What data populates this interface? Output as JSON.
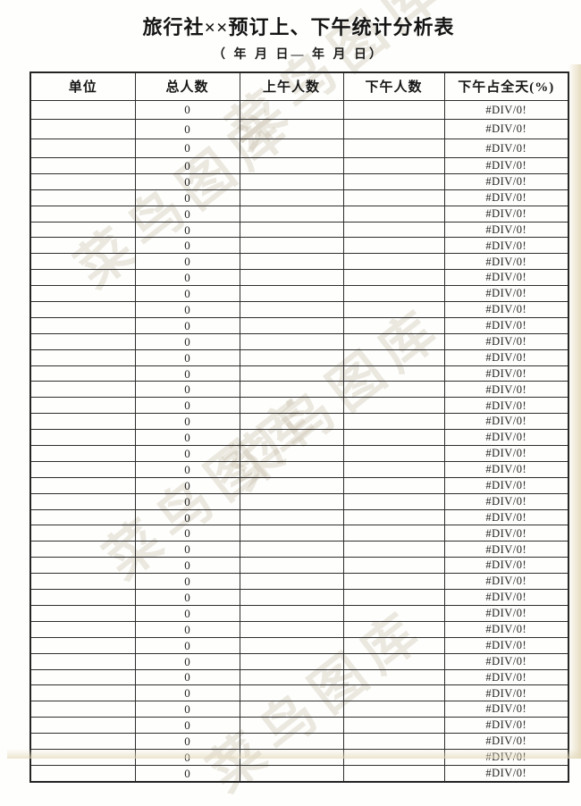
{
  "page": {
    "title": "旅行社××预订上、下午统计分析表",
    "subtitle": "（ 年 月  日— 年  月 日）"
  },
  "watermark": {
    "text": "菜鸟图库"
  },
  "colors": {
    "border": "#2d2d2d",
    "outer_border": "#242424",
    "text": "#1b1b1b",
    "edge_tint": "#e0d4b2",
    "watermark": "#bab096"
  },
  "table": {
    "columns": [
      {
        "key": "unit",
        "label": "单位"
      },
      {
        "key": "total",
        "label": "总人数"
      },
      {
        "key": "morning",
        "label": "上午人数"
      },
      {
        "key": "afternoon",
        "label": "下午人数"
      },
      {
        "key": "pct",
        "label": "下午占全天(%)"
      }
    ],
    "rows": [
      [
        "",
        "0",
        "",
        "",
        "#DIV/0!"
      ],
      [
        "",
        "0",
        "",
        "",
        "#DIV/0!"
      ],
      [
        "",
        "0",
        "",
        "",
        "#DIV/0!"
      ],
      [
        "",
        "0",
        "",
        "",
        "#DIV/0!"
      ],
      [
        "",
        "0",
        "",
        "",
        "#DIV/0!"
      ],
      [
        "",
        "0",
        "",
        "",
        "#DIV/0!"
      ],
      [
        "",
        "0",
        "",
        "",
        "#DIV/0!"
      ],
      [
        "",
        "0",
        "",
        "",
        "#DIV/0!"
      ],
      [
        "",
        "0",
        "",
        "",
        "#DIV/0!"
      ],
      [
        "",
        "0",
        "",
        "",
        "#DIV/0!"
      ],
      [
        "",
        "0",
        "",
        "",
        "#DIV/0!"
      ],
      [
        "",
        "0",
        "",
        "",
        "#DIV/0!"
      ],
      [
        "",
        "0",
        "",
        "",
        "#DIV/0!"
      ],
      [
        "",
        "0",
        "",
        "",
        "#DIV/0!"
      ],
      [
        "",
        "0",
        "",
        "",
        "#DIV/0!"
      ],
      [
        "",
        "0",
        "",
        "",
        "#DIV/0!"
      ],
      [
        "",
        "0",
        "",
        "",
        "#DIV/0!"
      ],
      [
        "",
        "0",
        "",
        "",
        "#DIV/0!"
      ],
      [
        "",
        "0",
        "",
        "",
        "#DIV/0!"
      ],
      [
        "",
        "0",
        "",
        "",
        "#DIV/0!"
      ],
      [
        "",
        "0",
        "",
        "",
        "#DIV/0!"
      ],
      [
        "",
        "0",
        "",
        "",
        "#DIV/0!"
      ],
      [
        "",
        "0",
        "",
        "",
        "#DIV/0!"
      ],
      [
        "",
        "0",
        "",
        "",
        "#DIV/0!"
      ],
      [
        "",
        "0",
        "",
        "",
        "#DIV/0!"
      ],
      [
        "",
        "0",
        "",
        "",
        "#DIV/0!"
      ],
      [
        "",
        "0",
        "",
        "",
        "#DIV/0!"
      ],
      [
        "",
        "0",
        "",
        "",
        "#DIV/0!"
      ],
      [
        "",
        "0",
        "",
        "",
        "#DIV/0!"
      ],
      [
        "",
        "0",
        "",
        "",
        "#DIV/0!"
      ],
      [
        "",
        "0",
        "",
        "",
        "#DIV/0!"
      ],
      [
        "",
        "0",
        "",
        "",
        "#DIV/0!"
      ],
      [
        "",
        "0",
        "",
        "",
        "#DIV/0!"
      ],
      [
        "",
        "0",
        "",
        "",
        "#DIV/0!"
      ],
      [
        "",
        "0",
        "",
        "",
        "#DIV/0!"
      ],
      [
        "",
        "0",
        "",
        "",
        "#DIV/0!"
      ],
      [
        "",
        "0",
        "",
        "",
        "#DIV/0!"
      ],
      [
        "",
        "0",
        "",
        "",
        "#DIV/0!"
      ],
      [
        "",
        "0",
        "",
        "",
        "#DIV/0!"
      ],
      [
        "",
        "0",
        "",
        "",
        "#DIV/0!"
      ],
      [
        "",
        "0",
        "",
        "",
        "#DIV/0!"
      ],
      [
        "",
        "0",
        "",
        "",
        "#DIV/0!"
      ]
    ]
  }
}
